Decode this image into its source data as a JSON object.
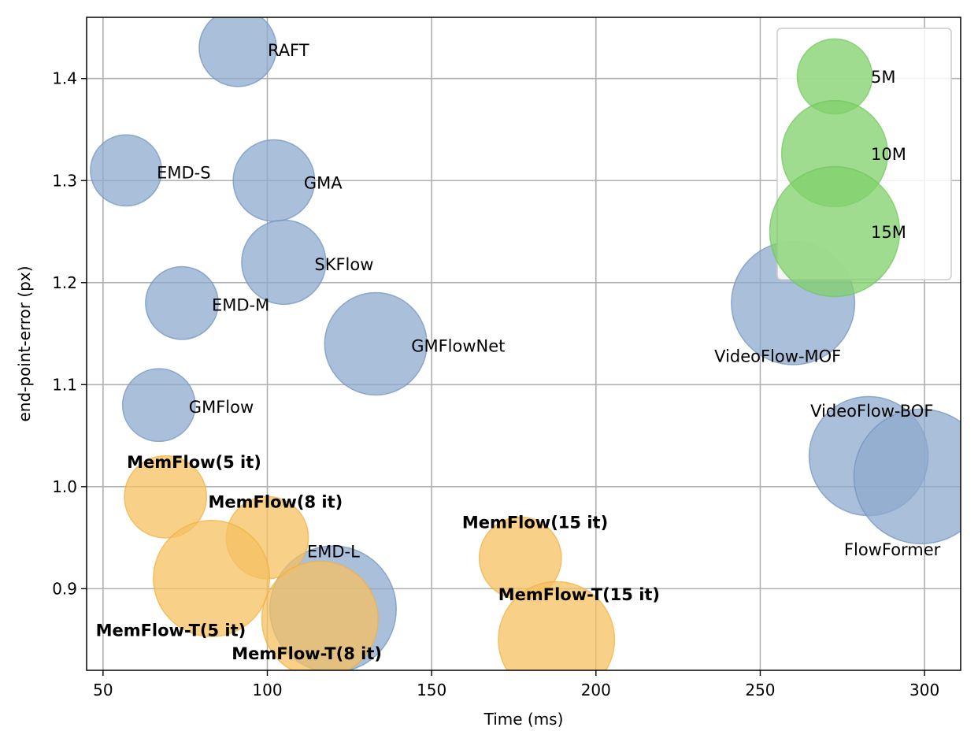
{
  "chart_data": {
    "type": "scatter",
    "title": "",
    "xlabel": "Time (ms)",
    "ylabel": "end-point-error (px)",
    "xlim": [
      45,
      311
    ],
    "ylim": [
      0.82,
      1.46
    ],
    "xticks": [
      50,
      100,
      150,
      200,
      250,
      300
    ],
    "yticks": [
      0.9,
      1.0,
      1.1,
      1.2,
      1.3,
      1.4
    ],
    "grid": true,
    "colors": {
      "baseline": "#8eaacc",
      "memflow": "#f5c060",
      "legend": "#80d06a"
    },
    "legend": {
      "position": "top-right",
      "entries": [
        {
          "label": "5M",
          "params_m": 5
        },
        {
          "label": "10M",
          "params_m": 10
        },
        {
          "label": "15M",
          "params_m": 15
        }
      ]
    },
    "points": [
      {
        "label": "RAFT",
        "x": 91,
        "y": 1.43,
        "params_m": 5.3,
        "group": "baseline",
        "bold": false
      },
      {
        "label": "EMD-S",
        "x": 57,
        "y": 1.31,
        "params_m": 4.5,
        "group": "baseline",
        "bold": false
      },
      {
        "label": "GMA",
        "x": 102,
        "y": 1.3,
        "params_m": 5.9,
        "group": "baseline",
        "bold": false
      },
      {
        "label": "SKFlow",
        "x": 105,
        "y": 1.22,
        "params_m": 6.3,
        "group": "baseline",
        "bold": false
      },
      {
        "label": "EMD-M",
        "x": 74,
        "y": 1.18,
        "params_m": 4.7,
        "group": "baseline",
        "bold": false
      },
      {
        "label": "GMFlowNet",
        "x": 133,
        "y": 1.14,
        "params_m": 9.3,
        "group": "baseline",
        "bold": false
      },
      {
        "label": "GMFlow",
        "x": 67,
        "y": 1.08,
        "params_m": 4.7,
        "group": "baseline",
        "bold": false
      },
      {
        "label": "VideoFlow-MOF",
        "x": 260,
        "y": 1.18,
        "params_m": 13.5,
        "group": "baseline",
        "bold": false
      },
      {
        "label": "VideoFlow-BOF",
        "x": 283,
        "y": 1.03,
        "params_m": 12.6,
        "group": "baseline",
        "bold": false
      },
      {
        "label": "FlowFormer",
        "x": 299,
        "y": 1.01,
        "params_m": 16.1,
        "group": "baseline",
        "bold": false
      },
      {
        "label": "EMD-L",
        "x": 120,
        "y": 0.88,
        "params_m": 14.2,
        "group": "baseline",
        "bold": false
      },
      {
        "label": "MemFlow(5 it)",
        "x": 69,
        "y": 0.99,
        "params_m": 6.0,
        "group": "memflow",
        "bold": true
      },
      {
        "label": "MemFlow(8 it)",
        "x": 100,
        "y": 0.95,
        "params_m": 6.0,
        "group": "memflow",
        "bold": true
      },
      {
        "label": "MemFlow(15 it)",
        "x": 177,
        "y": 0.93,
        "params_m": 6.0,
        "group": "memflow",
        "bold": true
      },
      {
        "label": "MemFlow-T(5 it)",
        "x": 83,
        "y": 0.91,
        "params_m": 12.0,
        "group": "memflow",
        "bold": true
      },
      {
        "label": "MemFlow-T(8 it)",
        "x": 116,
        "y": 0.87,
        "params_m": 12.0,
        "group": "memflow",
        "bold": true
      },
      {
        "label": "MemFlow-T(15 it)",
        "x": 188,
        "y": 0.85,
        "params_m": 12.0,
        "group": "memflow",
        "bold": true
      }
    ]
  }
}
